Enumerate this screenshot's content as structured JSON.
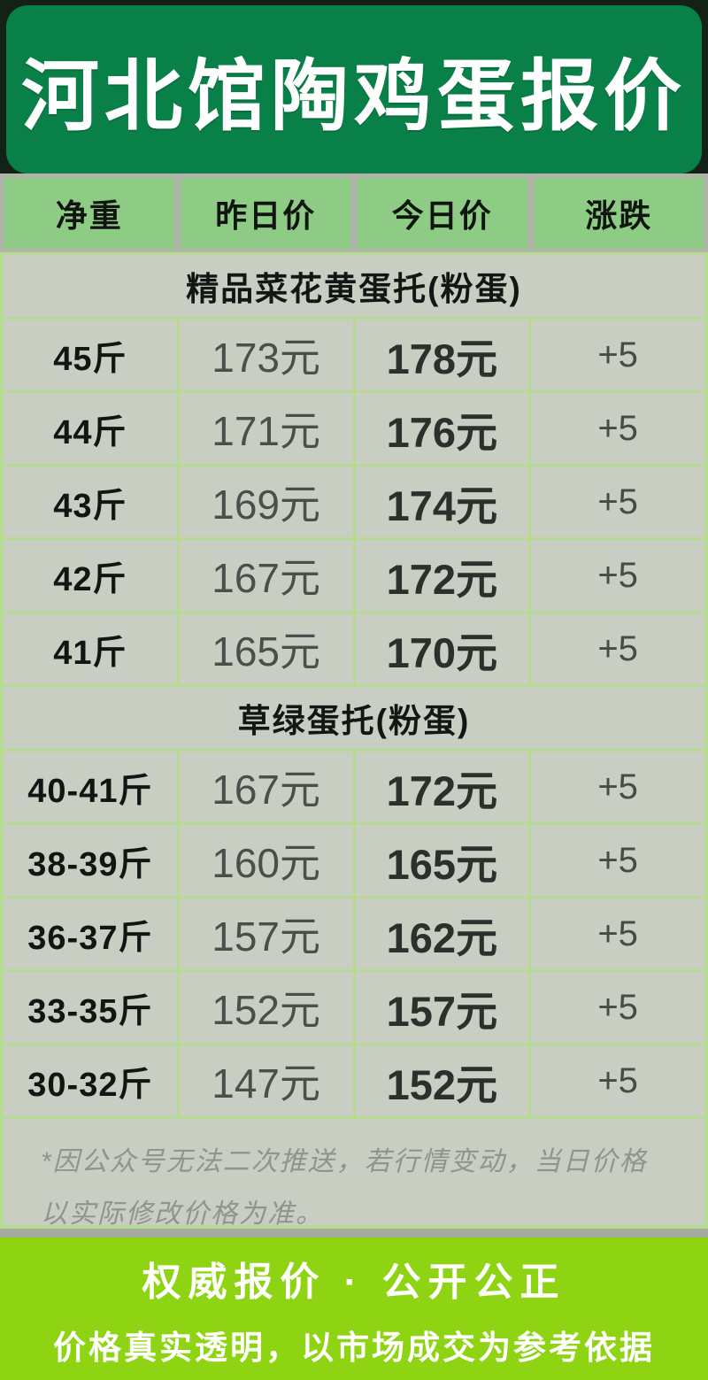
{
  "title": "河北馆陶鸡蛋报价",
  "columns": [
    "净重",
    "昨日价",
    "今日价",
    "涨跌"
  ],
  "sections": [
    {
      "header": "精品菜花黄蛋托(粉蛋)",
      "rows": [
        {
          "weight": "45斤",
          "yesterday": "173元",
          "today": "178元",
          "change": "+5"
        },
        {
          "weight": "44斤",
          "yesterday": "171元",
          "today": "176元",
          "change": "+5"
        },
        {
          "weight": "43斤",
          "yesterday": "169元",
          "today": "174元",
          "change": "+5"
        },
        {
          "weight": "42斤",
          "yesterday": "167元",
          "today": "172元",
          "change": "+5"
        },
        {
          "weight": "41斤",
          "yesterday": "165元",
          "today": "170元",
          "change": "+5"
        }
      ]
    },
    {
      "header": "草绿蛋托(粉蛋)",
      "rows": [
        {
          "weight": "40-41斤",
          "yesterday": "167元",
          "today": "172元",
          "change": "+5"
        },
        {
          "weight": "38-39斤",
          "yesterday": "160元",
          "today": "165元",
          "change": "+5"
        },
        {
          "weight": "36-37斤",
          "yesterday": "157元",
          "today": "162元",
          "change": "+5"
        },
        {
          "weight": "33-35斤",
          "yesterday": "152元",
          "today": "157元",
          "change": "+5"
        },
        {
          "weight": "30-32斤",
          "yesterday": "147元",
          "today": "152元",
          "change": "+5"
        }
      ]
    }
  ],
  "footnote": "*因公众号无法二次推送，若行情变动，当日价格以实际修改价格为准。",
  "banner": {
    "line1": "权威报价 · 公开公正",
    "line2": "价格真实透明，以市场成交为参考依据"
  },
  "colors": {
    "title_green": "#0a8049",
    "header_cell_green": "#8ecb85",
    "cell_gray": "#c9cec2",
    "grid_border_green": "#b7da92",
    "banner_green": "#8ed412",
    "footnote_gray": "#8e948e"
  }
}
